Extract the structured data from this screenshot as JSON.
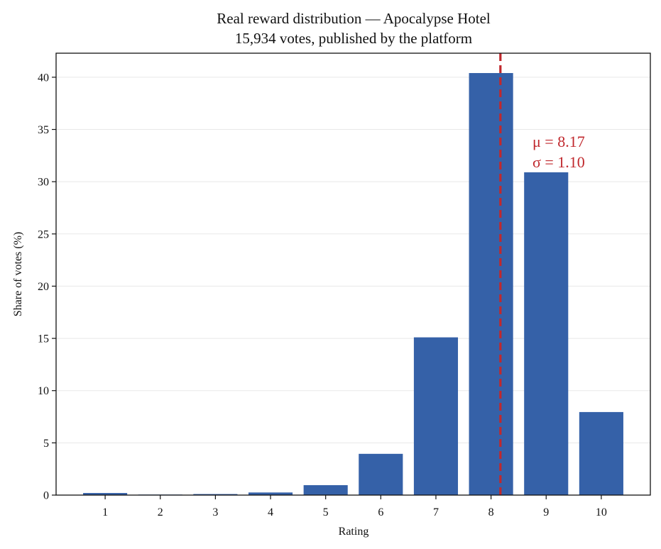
{
  "chart_data": {
    "type": "bar",
    "title": "Real reward distribution — Apocalypse Hotel",
    "subtitle": "15,934 votes, published by the platform",
    "xlabel": "Rating",
    "ylabel": "Share of votes (%)",
    "categories": [
      "1",
      "2",
      "3",
      "4",
      "5",
      "6",
      "7",
      "8",
      "9",
      "10"
    ],
    "values": [
      0.2,
      0.05,
      0.1,
      0.25,
      0.95,
      3.95,
      15.1,
      40.4,
      30.9,
      7.95
    ],
    "ylim": [
      0,
      42.3
    ],
    "yticks": [
      0,
      5,
      10,
      15,
      20,
      25,
      30,
      35,
      40
    ],
    "grid": "horizontal",
    "bar_color": "#3561a8",
    "mean_line": {
      "value": 8.17,
      "color": "#c0282d",
      "style": "dashed"
    },
    "annotation": {
      "mu_label": "μ = 8.17",
      "sigma_label": "σ = 1.10",
      "color": "#c0282d"
    }
  }
}
